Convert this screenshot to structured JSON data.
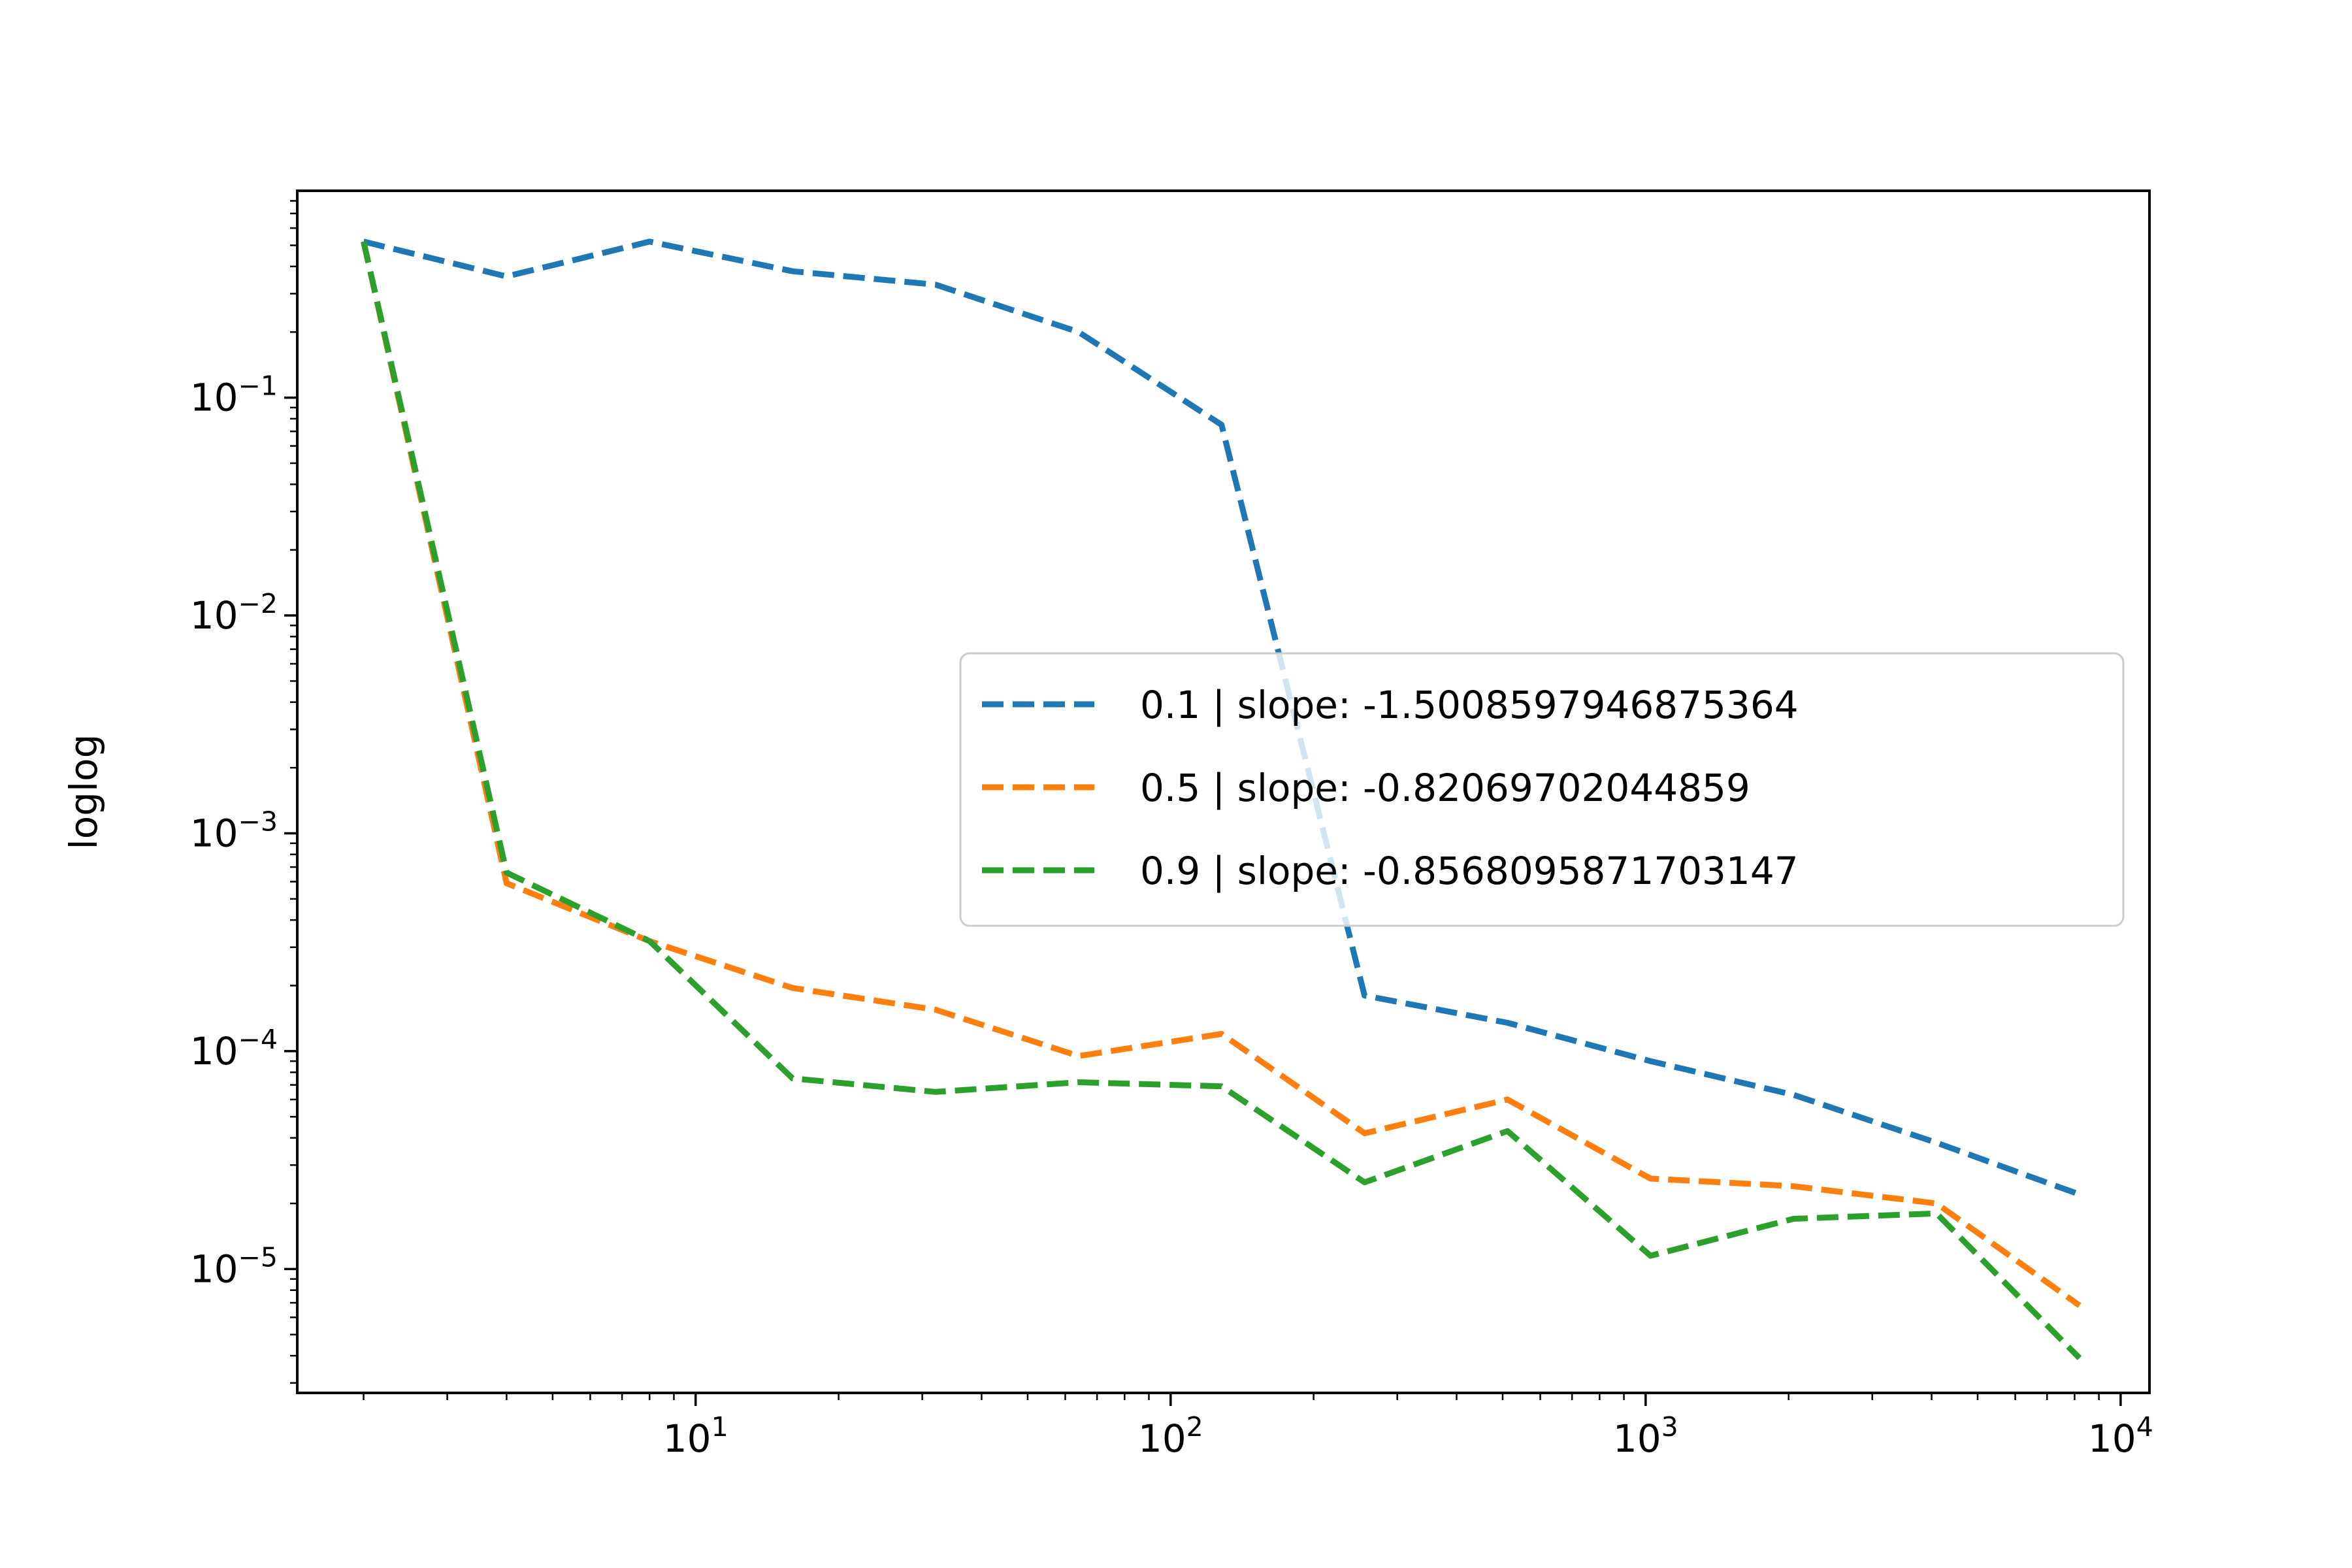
{
  "chart_data": {
    "type": "line",
    "title": "",
    "xlabel": "",
    "ylabel": "loglog",
    "xscale": "log",
    "yscale": "log",
    "xlim": [
      1.45,
      11500
    ],
    "ylim": [
      2.7e-06,
      0.89
    ],
    "grid": false,
    "legend_position": "center-right",
    "x": [
      2,
      4,
      8,
      16,
      32,
      64,
      128,
      256,
      512,
      1024,
      2048,
      4096,
      8192
    ],
    "x_ticks": [
      {
        "value": 10,
        "base": "10",
        "exp": "1"
      },
      {
        "value": 100,
        "base": "10",
        "exp": "2"
      },
      {
        "value": 1000,
        "base": "10",
        "exp": "3"
      },
      {
        "value": 10000,
        "base": "10",
        "exp": "4"
      }
    ],
    "y_ticks": [
      {
        "value": 0.1,
        "base": "10",
        "exp": "−1"
      },
      {
        "value": 0.01,
        "base": "10",
        "exp": "−2"
      },
      {
        "value": 0.001,
        "base": "10",
        "exp": "−3"
      },
      {
        "value": 0.0001,
        "base": "10",
        "exp": "−4"
      },
      {
        "value": 1e-05,
        "base": "10",
        "exp": "−5"
      }
    ],
    "series": [
      {
        "name": "0.1 | slope: -1.5008597946875364",
        "color": "#1f77b4",
        "values": [
          0.52,
          0.36,
          0.52,
          0.38,
          0.33,
          0.2,
          0.075,
          0.00018,
          0.000135,
          9e-05,
          6.3e-05,
          3.8e-05,
          2.2e-05
        ]
      },
      {
        "name": "0.5 | slope: -0.82069702044859",
        "color": "#ff7f0e",
        "values": [
          0.52,
          0.00059,
          0.00032,
          0.000195,
          0.000155,
          9.5e-05,
          0.00012,
          4.2e-05,
          6e-05,
          2.6e-05,
          2.4e-05,
          2e-05,
          6.8e-06
        ]
      },
      {
        "name": "0.9 | slope: -0.8568095871703147",
        "color": "#2ca02c",
        "values": [
          0.52,
          0.00066,
          0.00032,
          7.5e-05,
          6.5e-05,
          7.2e-05,
          6.9e-05,
          2.5e-05,
          4.3e-05,
          1.15e-05,
          1.7e-05,
          1.8e-05,
          3.9e-06
        ]
      }
    ]
  }
}
